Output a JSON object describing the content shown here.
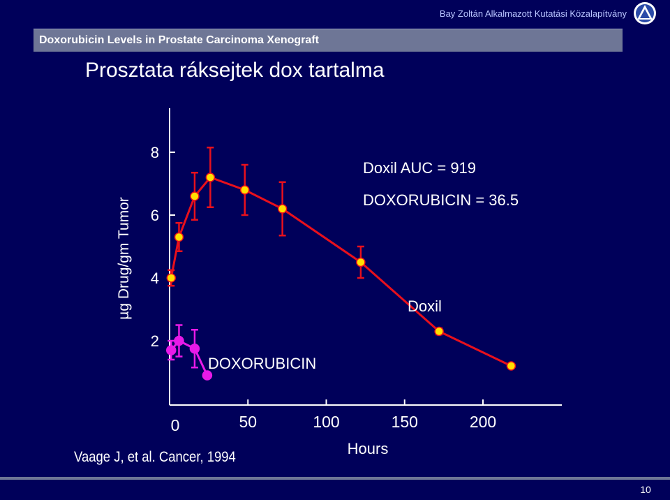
{
  "header": {
    "org_name": "Bay Zoltán Alkalmazott Kutatási Közalapítvány",
    "subtitle": "Doxorubicin Levels in Prostate Carcinoma Xenograft",
    "title": "Prosztata ráksejtek dox tartalma"
  },
  "footer": {
    "citation": "Vaage J, et al. Cancer, 1994",
    "page_number": "10"
  },
  "colors": {
    "background": "#00005a",
    "doxil_line": "#e8101c",
    "doxil_marker": "#ffe000",
    "doxorubicin": "#e81ae8"
  },
  "chart_data": {
    "type": "line",
    "xlabel": "Hours",
    "ylabel": "µg Drug/gm Tumor",
    "x_ticks": [
      0,
      50,
      100,
      150,
      200
    ],
    "y_ticks": [
      2,
      4,
      6,
      8
    ],
    "xlim": [
      0,
      210
    ],
    "ylim": [
      0.5,
      8
    ],
    "annotations": {
      "auc_doxil": "Doxil AUC = 919",
      "auc_doxorubicin": "DOXORUBICIN = 36.5"
    },
    "series": [
      {
        "name": "Doxil",
        "x": [
          1,
          6,
          16,
          26,
          48,
          72,
          122,
          172,
          218
        ],
        "y": [
          4.0,
          5.3,
          6.6,
          7.2,
          6.8,
          6.2,
          4.5,
          2.3,
          1.2
        ],
        "err": [
          0.25,
          0.45,
          0.75,
          0.95,
          0.8,
          0.85,
          0.5,
          0.1,
          0.0
        ]
      },
      {
        "name": "DOXORUBICIN",
        "x": [
          1,
          6,
          16,
          24
        ],
        "y": [
          1.7,
          2.0,
          1.75,
          0.9
        ],
        "err": [
          0.3,
          0.5,
          0.6,
          0.0
        ]
      }
    ]
  }
}
